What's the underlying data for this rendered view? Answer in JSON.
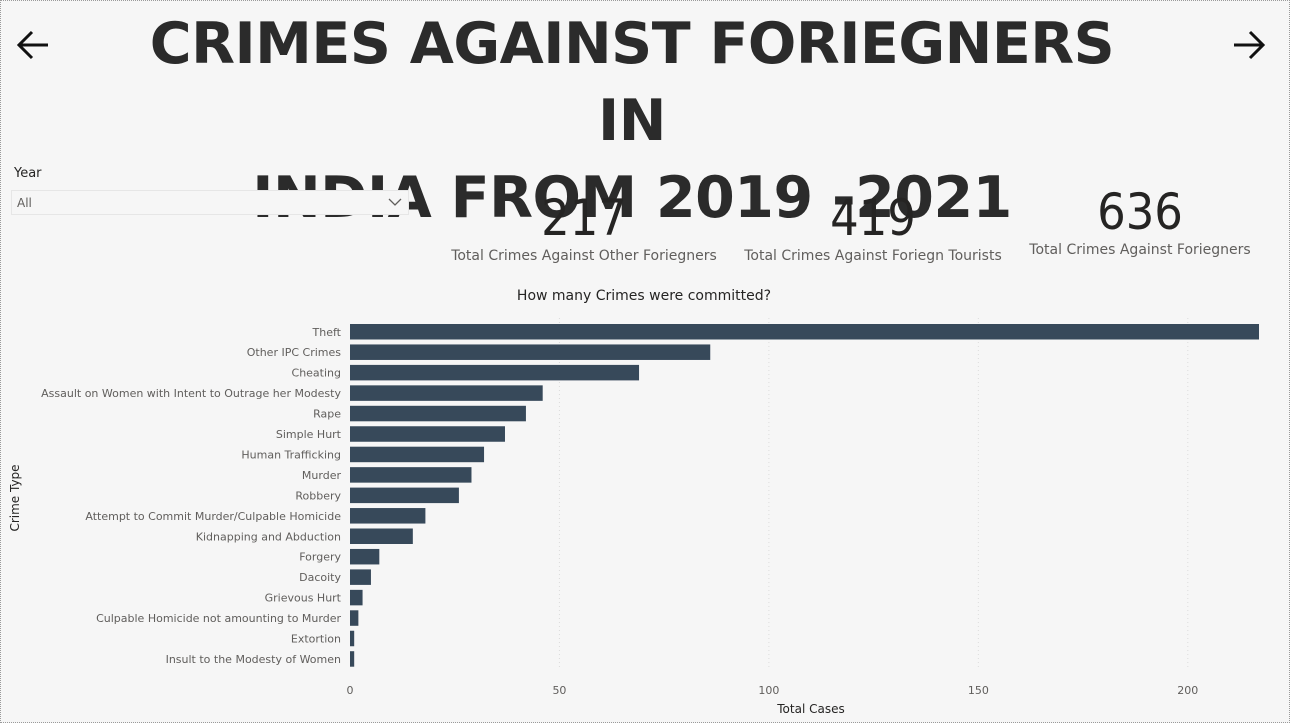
{
  "header": {
    "title_line1": "CRIMES AGAINST FORIEGNERS IN",
    "title_line2": "INDIA FROM 2019 -2021",
    "back_icon": "arrow-left-icon",
    "forward_icon": "arrow-right-icon"
  },
  "slicer": {
    "label": "Year",
    "value": "All",
    "icon": "chevron-down-icon"
  },
  "kpis": [
    {
      "value": "217",
      "label": "Total Crimes Against Other Foriegners"
    },
    {
      "value": "419",
      "label": "Total Crimes Against Foriegn Tourists"
    },
    {
      "value": "636",
      "label": "Total Crimes Against Foriegners"
    }
  ],
  "colors": {
    "bar": "#37495a",
    "background": "#f6f6f6"
  },
  "chart_data": {
    "type": "bar",
    "orientation": "horizontal",
    "title": "How many Crimes were committed?",
    "xlabel": "Total Cases",
    "ylabel": "Crime Type",
    "xlim": [
      0,
      217
    ],
    "xticks": [
      0,
      50,
      100,
      150,
      200
    ],
    "grid": true,
    "categories": [
      "Theft",
      "Other IPC Crimes",
      "Cheating",
      "Assault on Women with Intent to Outrage her Modesty",
      "Rape",
      "Simple Hurt",
      "Human Trafficking",
      "Murder",
      "Robbery",
      "Attempt to Commit Murder/Culpable Homicide",
      "Kidnapping and Abduction",
      "Forgery",
      "Dacoity",
      "Grievous Hurt",
      "Culpable Homicide not amounting to Murder",
      "Extortion",
      "Insult to the Modesty of Women"
    ],
    "values": [
      217,
      86,
      69,
      46,
      42,
      37,
      32,
      29,
      26,
      18,
      15,
      7,
      5,
      3,
      2,
      1,
      1
    ]
  }
}
